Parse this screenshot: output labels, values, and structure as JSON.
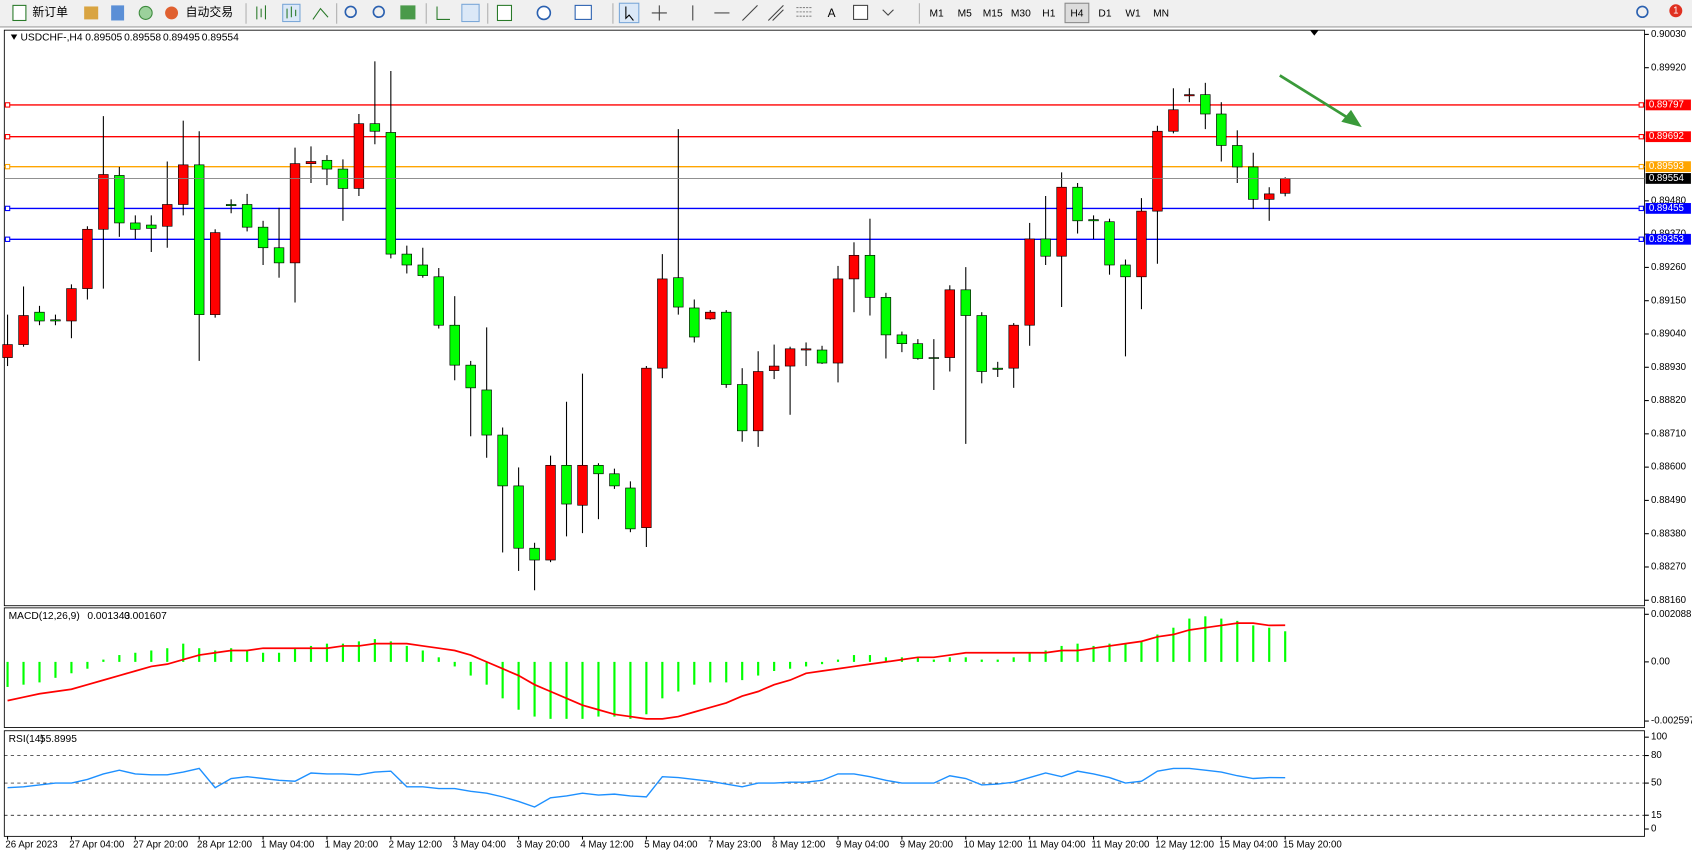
{
  "toolbar": {
    "new_order": "新订单",
    "auto_trading": "自动交易",
    "timeframes": [
      "M1",
      "M5",
      "M15",
      "M30",
      "H1",
      "H4",
      "D1",
      "W1",
      "MN"
    ],
    "active_timeframe": "H4",
    "notifications": 1
  },
  "chart_data": [
    {
      "type": "candlestick",
      "title": "USDCHF-,H4",
      "up_color": "#ff0000",
      "down_color": "#00ff00",
      "categories": [
        "26 Apr 2023",
        null,
        null,
        null,
        "27 Apr 04:00",
        null,
        null,
        null,
        "27 Apr 20:00",
        null,
        null,
        null,
        "28 Apr 12:00",
        null,
        null,
        null,
        "1 May 04:00",
        null,
        null,
        null,
        "1 May 20:00",
        null,
        null,
        null,
        "2 May 12:00",
        null,
        null,
        null,
        "3 May 04:00",
        null,
        null,
        null,
        "3 May 20:00",
        null,
        null,
        null,
        "4 May 12:00",
        null,
        null,
        null,
        "5 May 04:00",
        null,
        null,
        null,
        "7 May 23:00",
        null,
        null,
        null,
        "8 May 12:00",
        null,
        null,
        null,
        "9 May 04:00",
        null,
        null,
        null,
        "9 May 20:00",
        null,
        null,
        null,
        "10 May 12:00",
        null,
        null,
        null,
        "11 May 04:00",
        null,
        null,
        null,
        "11 May 20:00",
        null,
        null,
        null,
        "12 May 12:00",
        null,
        null,
        null,
        "15 May 04:00",
        null,
        null,
        null,
        "15 May 20:00"
      ],
      "ohlc": [
        [
          0.88962,
          0.89104,
          0.88934,
          0.89005
        ],
        [
          0.89005,
          0.89197,
          0.88998,
          0.89101
        ],
        [
          0.89112,
          0.89133,
          0.89069,
          0.89083
        ],
        [
          0.89087,
          0.89104,
          0.89069,
          0.89083
        ],
        [
          0.89083,
          0.89204,
          0.89026,
          0.8919
        ],
        [
          0.8919,
          0.89396,
          0.89154,
          0.89386
        ],
        [
          0.89386,
          0.8976,
          0.8919,
          0.89567
        ],
        [
          0.89564,
          0.89592,
          0.89361,
          0.89407
        ],
        [
          0.89407,
          0.89432,
          0.89354,
          0.89386
        ],
        [
          0.894,
          0.89432,
          0.89311,
          0.89389
        ],
        [
          0.89396,
          0.8961,
          0.89325,
          0.89468
        ],
        [
          0.89468,
          0.89745,
          0.89432,
          0.89599
        ],
        [
          0.89599,
          0.8971,
          0.88951,
          0.89104
        ],
        [
          0.89104,
          0.89386,
          0.89094,
          0.89375
        ],
        [
          0.89468,
          0.89485,
          0.89439,
          0.89464
        ],
        [
          0.89468,
          0.89503,
          0.89379,
          0.89393
        ],
        [
          0.89393,
          0.89414,
          0.89268,
          0.89325
        ],
        [
          0.89325,
          0.89457,
          0.89226,
          0.89275
        ],
        [
          0.89275,
          0.89656,
          0.89144,
          0.89603
        ],
        [
          0.89603,
          0.8966,
          0.89539,
          0.8961
        ],
        [
          0.89614,
          0.89631,
          0.89532,
          0.89585
        ],
        [
          0.89585,
          0.89617,
          0.89414,
          0.89521
        ],
        [
          0.89521,
          0.89767,
          0.89496,
          0.89735
        ],
        [
          0.89735,
          0.89941,
          0.89667,
          0.8971
        ],
        [
          0.89706,
          0.89909,
          0.8929,
          0.89304
        ],
        [
          0.89304,
          0.89332,
          0.8924,
          0.89268
        ],
        [
          0.89268,
          0.89325,
          0.89226,
          0.89233
        ],
        [
          0.89229,
          0.89258,
          0.89058,
          0.89069
        ],
        [
          0.89069,
          0.89165,
          0.88887,
          0.88937
        ],
        [
          0.88937,
          0.88951,
          0.88702,
          0.88862
        ],
        [
          0.88855,
          0.89062,
          0.88631,
          0.88706
        ],
        [
          0.88706,
          0.88731,
          0.88318,
          0.88538
        ],
        [
          0.88538,
          0.88599,
          0.88257,
          0.88332
        ],
        [
          0.88332,
          0.8835,
          0.88193,
          0.88293
        ],
        [
          0.88293,
          0.88638,
          0.88286,
          0.88606
        ],
        [
          0.88606,
          0.88816,
          0.88371,
          0.88478
        ],
        [
          0.88474,
          0.88909,
          0.88382,
          0.88606
        ],
        [
          0.88606,
          0.88613,
          0.88428,
          0.88578
        ],
        [
          0.88578,
          0.88595,
          0.88528,
          0.88538
        ],
        [
          0.88531,
          0.88553,
          0.88385,
          0.88396
        ],
        [
          0.884,
          0.88934,
          0.88336,
          0.88927
        ],
        [
          0.88927,
          0.89304,
          0.88894,
          0.89222
        ],
        [
          0.89226,
          0.89717,
          0.89104,
          0.89129
        ],
        [
          0.89126,
          0.89154,
          0.89012,
          0.8903
        ],
        [
          0.8909,
          0.89119,
          0.89087,
          0.89112
        ],
        [
          0.89112,
          0.89119,
          0.88862,
          0.88873
        ],
        [
          0.88873,
          0.88927,
          0.88684,
          0.8872
        ],
        [
          0.8872,
          0.88983,
          0.88667,
          0.88916
        ],
        [
          0.88919,
          0.89005,
          0.88891,
          0.88934
        ],
        [
          0.88934,
          0.88998,
          0.88773,
          0.88991
        ],
        [
          0.88987,
          0.89012,
          0.88934,
          0.88991
        ],
        [
          0.88987,
          0.89001,
          0.88941,
          0.88944
        ],
        [
          0.88944,
          0.89265,
          0.8888,
          0.89222
        ],
        [
          0.89222,
          0.89343,
          0.89112,
          0.893
        ],
        [
          0.893,
          0.89421,
          0.89101,
          0.89161
        ],
        [
          0.89161,
          0.89176,
          0.88959,
          0.89037
        ],
        [
          0.89037,
          0.89048,
          0.8898,
          0.89008
        ],
        [
          0.89008,
          0.89023,
          0.88955,
          0.88959
        ],
        [
          0.88962,
          0.89023,
          0.88855,
          0.88959
        ],
        [
          0.88962,
          0.89201,
          0.88916,
          0.89186
        ],
        [
          0.89186,
          0.89261,
          0.88677,
          0.89101
        ],
        [
          0.89101,
          0.89112,
          0.88877,
          0.88916
        ],
        [
          0.88927,
          0.88948,
          0.88898,
          0.88923
        ],
        [
          0.88927,
          0.89076,
          0.88862,
          0.89069
        ],
        [
          0.89069,
          0.89407,
          0.89001,
          0.89354
        ],
        [
          0.89354,
          0.89496,
          0.89268,
          0.89297
        ],
        [
          0.89297,
          0.89574,
          0.89129,
          0.89525
        ],
        [
          0.89525,
          0.89539,
          0.89372,
          0.89414
        ],
        [
          0.89418,
          0.89432,
          0.89354,
          0.89414
        ],
        [
          0.89411,
          0.89421,
          0.89236,
          0.89268
        ],
        [
          0.89268,
          0.89286,
          0.88966,
          0.89229
        ],
        [
          0.89229,
          0.89489,
          0.89122,
          0.89446
        ],
        [
          0.89446,
          0.89728,
          0.89272,
          0.8971
        ],
        [
          0.8971,
          0.89852,
          0.89703,
          0.89781
        ],
        [
          0.89827,
          0.89852,
          0.89806,
          0.89831
        ],
        [
          0.89831,
          0.8987,
          0.89717,
          0.89767
        ],
        [
          0.89767,
          0.89806,
          0.8961,
          0.89663
        ],
        [
          0.89663,
          0.89713,
          0.89539,
          0.89592
        ],
        [
          0.89592,
          0.89639,
          0.89453,
          0.89485
        ],
        [
          0.89485,
          0.89525,
          0.89414,
          0.89503
        ],
        [
          0.89505,
          0.89558,
          0.89495,
          0.89554
        ]
      ],
      "ylim": [
        0.88142,
        0.90044
      ],
      "yticks": [
        {
          "value": 0.9003,
          "label": "0.90030"
        },
        {
          "value": 0.8992,
          "label": "0.89920"
        },
        {
          "value": 0.8948,
          "label": "0.89480"
        },
        {
          "value": 0.8937,
          "label": "0.89370"
        },
        {
          "value": 0.8926,
          "label": "0.89260"
        },
        {
          "value": 0.8915,
          "label": "0.89150"
        },
        {
          "value": 0.8904,
          "label": "0.89040"
        },
        {
          "value": 0.8893,
          "label": "0.88930"
        },
        {
          "value": 0.8882,
          "label": "0.88820"
        },
        {
          "value": 0.8871,
          "label": "0.88710"
        },
        {
          "value": 0.886,
          "label": "0.88600"
        },
        {
          "value": 0.8849,
          "label": "0.88490"
        },
        {
          "value": 0.8838,
          "label": "0.88380"
        },
        {
          "value": 0.8827,
          "label": "0.88270"
        },
        {
          "value": 0.8816,
          "label": "0.88160"
        }
      ],
      "levels": [
        {
          "value": 0.89797,
          "color": "#ff0000"
        },
        {
          "value": 0.89692,
          "color": "#ff0000"
        },
        {
          "value": 0.89593,
          "color": "#ffa500"
        },
        {
          "value": 0.89455,
          "color": "#0000ff"
        },
        {
          "value": 0.89353,
          "color": "#0000ff"
        }
      ],
      "last_price_color": "#000000"
    },
    {
      "type": "macd",
      "title": "MACD(12,26,9)",
      "histogram_color": "#00ff00",
      "signal_color": "#ff0000",
      "histogram": [
        -0.0011,
        -0.001,
        -0.0009,
        -0.0007,
        -0.0005,
        -0.0003,
        0.0001,
        0.0003,
        0.0004,
        0.0005,
        0.0006,
        0.0008,
        0.0006,
        0.0005,
        0.0006,
        0.0005,
        0.0004,
        0.0004,
        0.0006,
        0.0007,
        0.0008,
        0.0008,
        0.0009,
        0.001,
        0.0009,
        0.0007,
        0.0005,
        0.0002,
        -0.0002,
        -0.0006,
        -0.001,
        -0.0016,
        -0.0021,
        -0.0024,
        -0.0025,
        -0.0025,
        -0.0025,
        -0.0024,
        -0.0024,
        -0.0025,
        -0.0023,
        -0.0016,
        -0.0013,
        -0.001,
        -0.0009,
        -0.0009,
        -0.0008,
        -0.0006,
        -0.0004,
        -0.0003,
        -0.0002,
        -0.0001,
        0.0001,
        0.0003,
        0.0003,
        0.0002,
        0.0002,
        0.0002,
        0.0001,
        0.0002,
        0.0002,
        0.0001,
        0.0001,
        0.0002,
        0.0004,
        0.0005,
        0.0007,
        0.0008,
        0.0007,
        0.0008,
        0.0008,
        0.0009,
        0.0012,
        0.0015,
        0.0019,
        0.002,
        0.0019,
        0.0018,
        0.0016,
        0.0015,
        0.001343
      ],
      "signal": [
        -0.0017,
        -0.00155,
        -0.0014,
        -0.0013,
        -0.0012,
        -0.001,
        -0.0008,
        -0.0006,
        -0.0004,
        -0.0002,
        -0.0001,
        0.0001,
        0.0003,
        0.0004,
        0.0005,
        0.0005,
        0.0006,
        0.0006,
        0.0006,
        0.0006,
        0.0006,
        0.0007,
        0.0007,
        0.0008,
        0.0008,
        0.0008,
        0.0007,
        0.0006,
        0.0005,
        0.0003,
        0,
        -0.0003,
        -0.0006,
        -0.001,
        -0.0013,
        -0.0016,
        -0.0019,
        -0.0021,
        -0.0023,
        -0.0024,
        -0.0025,
        -0.0025,
        -0.0024,
        -0.0022,
        -0.002,
        -0.0018,
        -0.0015,
        -0.0013,
        -0.001,
        -0.0008,
        -0.0005,
        -0.0004,
        -0.0003,
        -0.0002,
        -0.0001,
        0,
        0.0001,
        0.0002,
        0.0002,
        0.0003,
        0.0004,
        0.0004,
        0.0004,
        0.0004,
        0.0004,
        0.0004,
        0.0005,
        0.0005,
        0.0006,
        0.0007,
        0.0008,
        0.0009,
        0.0011,
        0.0012,
        0.0014,
        0.0015,
        0.0016,
        0.0017,
        0.0017,
        0.0016,
        0.001607
      ],
      "ylim": [
        -0.00288,
        0.00237
      ],
      "yticks": [
        0.002088,
        {
          "value": 0,
          "label": "0.00"
        },
        -0.002597
      ]
    },
    {
      "type": "line",
      "title": "RSI(14)",
      "color": "#1e90ff",
      "values": [
        45,
        46,
        48,
        50,
        50,
        54,
        60,
        64,
        60,
        59,
        59,
        62,
        66,
        45,
        55,
        57,
        55,
        53,
        52,
        61,
        60,
        60,
        59,
        62,
        63,
        46,
        46,
        44,
        44,
        41,
        39,
        35,
        30,
        24,
        34,
        36,
        39,
        37,
        38,
        36,
        35,
        57,
        56,
        54,
        52,
        49,
        46,
        50,
        50,
        51,
        51,
        53,
        60,
        60,
        57,
        53,
        50,
        50,
        50,
        58,
        55,
        48,
        49,
        51,
        56,
        61,
        57,
        63,
        60,
        56,
        50,
        52,
        63,
        66,
        66,
        64,
        62,
        58,
        55,
        56,
        55.8995
      ],
      "ylim": [
        -8,
        107
      ],
      "yticks": [
        100,
        80,
        50,
        15,
        0
      ],
      "levels": [
        80,
        50,
        15
      ]
    }
  ]
}
